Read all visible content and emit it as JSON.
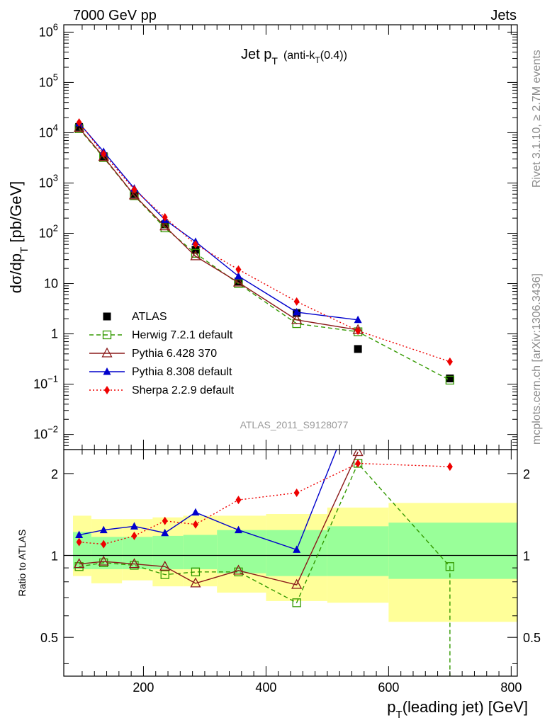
{
  "header": {
    "left": "7000 GeV pp",
    "right": "Jets"
  },
  "side_labels": {
    "rivet": "Rivet 3.1.10, ≥ 2.7M events",
    "mcplots": "mcplots.cern.ch [arXiv:1306.3436]"
  },
  "analysis_id": "ATLAS_2011_S9128077",
  "chart_data": [
    {
      "type": "line",
      "title": {
        "main": "Jet p",
        "main_sub": "T",
        "paren_open": "(anti-k",
        "paren_sub": "T",
        "paren_close": "(0.4))"
      },
      "ylabel": {
        "pre": "dσ/dp",
        "sub": "T",
        "post": " [pb/GeV]"
      },
      "yscale": "log",
      "ylim": [
        0.005,
        1400000
      ],
      "xlim": [
        70,
        810
      ],
      "yticks": [
        {
          "v": 0.01,
          "m": "10",
          "e": "−2"
        },
        {
          "v": 0.1,
          "m": "10",
          "e": "−1"
        },
        {
          "v": 1,
          "m": "1",
          "e": ""
        },
        {
          "v": 10,
          "m": "10",
          "e": ""
        },
        {
          "v": 100,
          "m": "10",
          "e": "2"
        },
        {
          "v": 1000,
          "m": "10",
          "e": "3"
        },
        {
          "v": 10000,
          "m": "10",
          "e": "4"
        },
        {
          "v": 100000,
          "m": "10",
          "e": "5"
        },
        {
          "v": 1000000,
          "m": "10",
          "e": "6"
        }
      ],
      "legend_position": "lower-left",
      "series": [
        {
          "name": "ATLAS",
          "color": "#000000",
          "marker": "square-filled",
          "line": "none",
          "points": [
            [
              95,
              13000
            ],
            [
              135,
              3400
            ],
            [
              185,
              600
            ],
            [
              235,
              150
            ],
            [
              285,
              47
            ],
            [
              355,
              11
            ],
            [
              450,
              2.6
            ],
            [
              550,
              0.5
            ],
            [
              700,
              0.13
            ]
          ]
        },
        {
          "name": "Herwig 7.2.1 default",
          "color": "#339900",
          "marker": "square-open",
          "line": "dashed",
          "points": [
            [
              95,
              12000
            ],
            [
              135,
              3200
            ],
            [
              185,
              560
            ],
            [
              235,
              128
            ],
            [
              285,
              40
            ],
            [
              355,
              10
            ],
            [
              450,
              1.6
            ],
            [
              550,
              1.1
            ],
            [
              700,
              0.12
            ]
          ]
        },
        {
          "name": "Pythia 6.428 370",
          "color": "#8b1a1a",
          "marker": "triangle-open",
          "line": "solid",
          "points": [
            [
              95,
              12500
            ],
            [
              135,
              3300
            ],
            [
              185,
              570
            ],
            [
              235,
              138
            ],
            [
              285,
              35
            ],
            [
              355,
              10.5
            ],
            [
              450,
              1.9
            ],
            [
              550,
              1.2
            ]
          ]
        },
        {
          "name": "Pythia 8.308 default",
          "color": "#0000cc",
          "marker": "triangle-filled",
          "line": "solid",
          "points": [
            [
              95,
              15500
            ],
            [
              135,
              4200
            ],
            [
              185,
              780
            ],
            [
              235,
              186
            ],
            [
              285,
              68
            ],
            [
              355,
              14
            ],
            [
              450,
              2.7
            ],
            [
              550,
              1.9
            ]
          ]
        },
        {
          "name": "Sherpa 2.2.9 default",
          "color": "#ee0000",
          "marker": "diamond-filled",
          "line": "dotted",
          "points": [
            [
              95,
              16000
            ],
            [
              135,
              3800
            ],
            [
              185,
              740
            ],
            [
              235,
              208
            ],
            [
              285,
              60
            ],
            [
              355,
              19
            ],
            [
              450,
              4.4
            ],
            [
              550,
              1.15
            ],
            [
              700,
              0.28
            ]
          ]
        }
      ]
    },
    {
      "type": "line",
      "ylabel": "Ratio to ATLAS",
      "xlabel": {
        "pre": "p",
        "sub": "T",
        "post": "(leading jet) [GeV]"
      },
      "yscale": "log",
      "ylim": [
        0.36,
        2.45
      ],
      "xlim": [
        70,
        810
      ],
      "yticks": [
        0.5,
        1,
        2
      ],
      "xticks": [
        200,
        400,
        600,
        800
      ],
      "bands": [
        {
          "x": [
            70,
            115
          ],
          "inner": [
            0.89,
            1.22
          ],
          "outer": [
            0.84,
            1.4
          ]
        },
        {
          "x": [
            115,
            165
          ],
          "inner": [
            0.89,
            1.17
          ],
          "outer": [
            0.79,
            1.36
          ]
        },
        {
          "x": [
            165,
            215
          ],
          "inner": [
            0.89,
            1.17
          ],
          "outer": [
            0.81,
            1.36
          ]
        },
        {
          "x": [
            215,
            265
          ],
          "inner": [
            0.89,
            1.18
          ],
          "outer": [
            0.77,
            1.38
          ]
        },
        {
          "x": [
            265,
            320
          ],
          "inner": [
            0.89,
            1.19
          ],
          "outer": [
            0.77,
            1.4
          ]
        },
        {
          "x": [
            320,
            400
          ],
          "inner": [
            0.86,
            1.24
          ],
          "outer": [
            0.73,
            1.4
          ]
        },
        {
          "x": [
            400,
            500
          ],
          "inner": [
            0.84,
            1.24
          ],
          "outer": [
            0.68,
            1.42
          ]
        },
        {
          "x": [
            500,
            600
          ],
          "inner": [
            0.84,
            1.28
          ],
          "outer": [
            0.67,
            1.5
          ]
        },
        {
          "x": [
            600,
            810
          ],
          "inner": [
            0.82,
            1.32
          ],
          "outer": [
            0.57,
            1.56
          ]
        }
      ],
      "series": [
        {
          "name": "Herwig 7.2.1 default",
          "color": "#339900",
          "marker": "square-open",
          "line": "dashed",
          "points": [
            [
              95,
              0.91
            ],
            [
              135,
              0.94
            ],
            [
              185,
              0.92
            ],
            [
              235,
              0.85
            ],
            [
              285,
              0.87
            ],
            [
              355,
              0.87
            ],
            [
              450,
              0.67
            ],
            [
              550,
              2.18
            ],
            [
              700,
              0.91
            ],
            [
              700,
              0.3
            ]
          ]
        },
        {
          "name": "Pythia 6.428 370",
          "color": "#8b1a1a",
          "marker": "triangle-open",
          "line": "solid",
          "points": [
            [
              95,
              0.93
            ],
            [
              135,
              0.95
            ],
            [
              185,
              0.93
            ],
            [
              235,
              0.91
            ],
            [
              285,
              0.79
            ],
            [
              355,
              0.88
            ],
            [
              450,
              0.78
            ],
            [
              550,
              2.4
            ]
          ]
        },
        {
          "name": "Pythia 8.308 default",
          "color": "#0000cc",
          "marker": "triangle-filled",
          "line": "solid",
          "points": [
            [
              95,
              1.19
            ],
            [
              135,
              1.24
            ],
            [
              185,
              1.28
            ],
            [
              235,
              1.21
            ],
            [
              285,
              1.44
            ],
            [
              355,
              1.24
            ],
            [
              450,
              1.05
            ],
            [
              515,
              2.45
            ]
          ]
        },
        {
          "name": "Sherpa 2.2.9 default",
          "color": "#ee0000",
          "marker": "diamond-filled",
          "line": "dotted",
          "points": [
            [
              95,
              1.12
            ],
            [
              135,
              1.1
            ],
            [
              185,
              1.18
            ],
            [
              235,
              1.34
            ],
            [
              285,
              1.3
            ],
            [
              355,
              1.6
            ],
            [
              450,
              1.7
            ],
            [
              550,
              2.18
            ],
            [
              700,
              2.12
            ]
          ]
        }
      ]
    }
  ]
}
